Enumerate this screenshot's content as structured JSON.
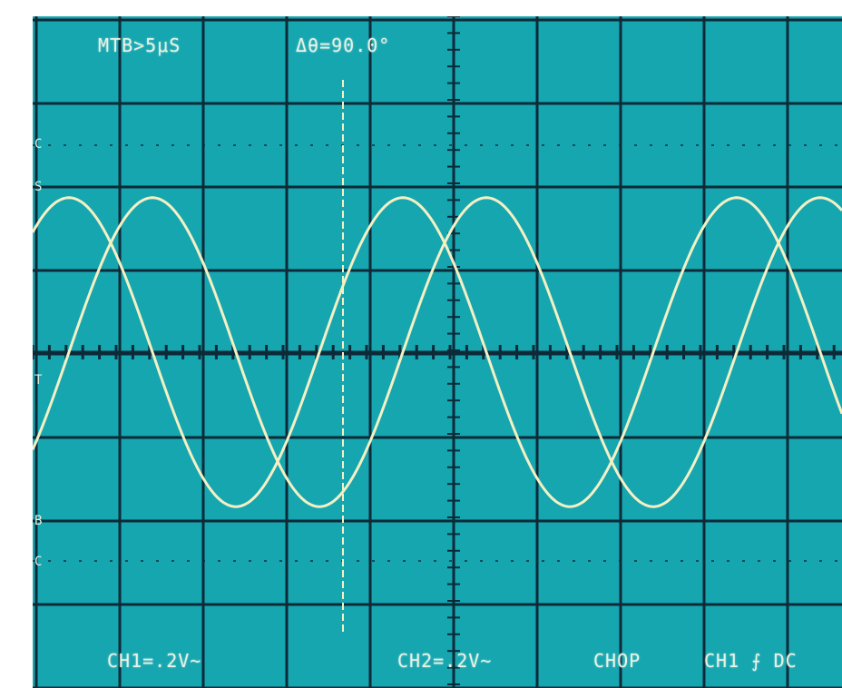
{
  "readouts": {
    "timebase": "MTB>5μS",
    "phase": "Δθ=90.0°",
    "ch1": "CH1=.2V~",
    "ch2": "CH2=.2V~",
    "mode": "CHOP",
    "trigger": "CH1 ⨍ DC"
  },
  "markers": {
    "level_upper": "C",
    "level_ref": "S",
    "level_mid": "T",
    "level_lower": "B",
    "level_bottom": "C"
  },
  "colors": {
    "screen": "#16a6b0",
    "grid": "#0c2a38",
    "trace": "#f4f0c4",
    "text": "#e8f3e4"
  },
  "trace_data": {
    "period_divisions": 4.0,
    "amplitude_divisions": 1.85,
    "phase_shift_degrees": 90,
    "ch1_offset_divisions": 0,
    "ch2_offset_divisions": 0
  }
}
